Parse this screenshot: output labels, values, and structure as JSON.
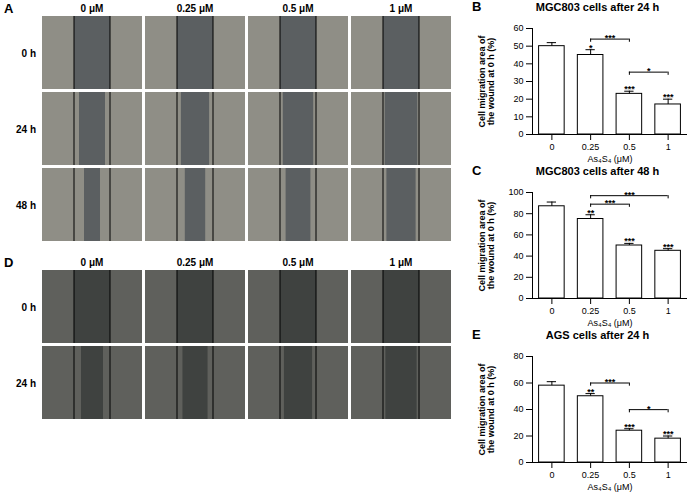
{
  "image_panels": [
    {
      "label": "A",
      "columns": [
        "0 μM",
        "0.25 μM",
        "0.5 μM",
        "1 μM"
      ],
      "rows": [
        "0 h",
        "24 h",
        "48 h"
      ]
    },
    {
      "label": "D",
      "columns": [
        "0 μM",
        "0.25 μM",
        "0.5 μM",
        "1 μM"
      ],
      "rows": [
        "0 h",
        "24 h"
      ]
    }
  ],
  "chart_data": [
    {
      "type": "bar",
      "panel_label": "B",
      "title": "MGC803 cells after 24 h",
      "xlabel": "As₄S₄ (μM)",
      "ylabel": "Cell migration area of the wound at 0 h (%)",
      "categories": [
        "0",
        "0.25",
        "0.5",
        "1"
      ],
      "values": [
        50,
        45,
        23,
        17
      ],
      "errors": [
        2,
        3,
        1.5,
        3
      ],
      "significance": [
        "",
        "*",
        "***",
        "***"
      ],
      "comparisons": [
        {
          "from": "0.25",
          "to": "0.5",
          "label": "***"
        },
        {
          "from": "0.5",
          "to": "1",
          "label": "*"
        }
      ],
      "color": "#ffffff",
      "ylim": [
        0,
        60
      ],
      "yticks": [
        0,
        10,
        20,
        30,
        40,
        50,
        60
      ]
    },
    {
      "type": "bar",
      "panel_label": "C",
      "title": "MGC803 cells after 48 h",
      "xlabel": "As₄S₄ (μM)",
      "ylabel": "Cell migration area of the wound at 0 h (%)",
      "categories": [
        "0",
        "0.25",
        "0.5",
        "1"
      ],
      "values": [
        87,
        75,
        50,
        45
      ],
      "errors": [
        4,
        4,
        2,
        2
      ],
      "significance": [
        "",
        "**",
        "***",
        "***"
      ],
      "comparisons": [
        {
          "from": "0.25",
          "to": "0.5",
          "label": "***"
        },
        {
          "from": "0.25",
          "to": "1",
          "label": "***"
        }
      ],
      "color": "#ffffff",
      "ylim": [
        0,
        100
      ],
      "yticks": [
        0,
        20,
        40,
        60,
        80,
        100
      ]
    },
    {
      "type": "bar",
      "panel_label": "E",
      "title": "AGS cells after 24 h",
      "xlabel": "As₄S₄ (μM)",
      "ylabel": "Cell migration area of the wound at 0 h (%)",
      "categories": [
        "0",
        "0.25",
        "0.5",
        "1"
      ],
      "values": [
        58,
        50,
        24,
        18
      ],
      "errors": [
        3,
        2,
        1.5,
        2
      ],
      "significance": [
        "",
        "**",
        "***",
        "***"
      ],
      "comparisons": [
        {
          "from": "0.25",
          "to": "0.5",
          "label": "***"
        },
        {
          "from": "0.5",
          "to": "1",
          "label": "*"
        }
      ],
      "color": "#ffffff",
      "ylim": [
        0,
        80
      ],
      "yticks": [
        0,
        20,
        40,
        60,
        80
      ]
    }
  ]
}
